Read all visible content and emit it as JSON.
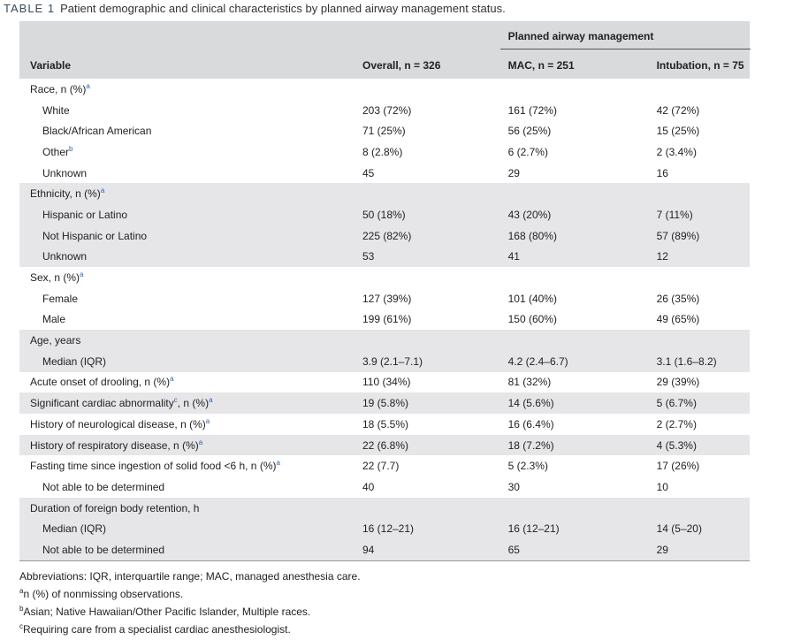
{
  "caption": {
    "label": "TABLE 1",
    "text": "Patient demographic and clinical characteristics by planned airway management status."
  },
  "header": {
    "group": "Planned airway management",
    "variable": "Variable",
    "overall": "Overall, n = 326",
    "mac": "MAC, n = 251",
    "intubation": "Intubation, n = 75"
  },
  "rows": {
    "race": {
      "label": "Race, n (%)",
      "sup": "a"
    },
    "white": {
      "label": "White",
      "overall": "203 (72%)",
      "mac": "161 (72%)",
      "intubation": "42 (72%)"
    },
    "black": {
      "label": "Black/African American",
      "overall": "71 (25%)",
      "mac": "56 (25%)",
      "intubation": "15 (25%)"
    },
    "other": {
      "label": "Other",
      "sup": "b",
      "overall": "8 (2.8%)",
      "mac": "6 (2.7%)",
      "intubation": "2 (3.4%)"
    },
    "race_unknown": {
      "label": "Unknown",
      "overall": "45",
      "mac": "29",
      "intubation": "16"
    },
    "ethnicity": {
      "label": "Ethnicity, n (%)",
      "sup": "a"
    },
    "hispanic": {
      "label": "Hispanic or Latino",
      "overall": "50 (18%)",
      "mac": "43 (20%)",
      "intubation": "7 (11%)"
    },
    "not_hispanic": {
      "label": "Not Hispanic or Latino",
      "overall": "225 (82%)",
      "mac": "168 (80%)",
      "intubation": "57 (89%)"
    },
    "eth_unknown": {
      "label": "Unknown",
      "overall": "53",
      "mac": "41",
      "intubation": "12"
    },
    "sex": {
      "label": "Sex, n (%)",
      "sup": "a"
    },
    "female": {
      "label": "Female",
      "overall": "127 (39%)",
      "mac": "101 (40%)",
      "intubation": "26 (35%)"
    },
    "male": {
      "label": "Male",
      "overall": "199 (61%)",
      "mac": "150 (60%)",
      "intubation": "49 (65%)"
    },
    "age": {
      "label": "Age, years"
    },
    "age_median": {
      "label": "Median (IQR)",
      "overall": "3.9 (2.1–7.1)",
      "mac": "4.2 (2.4–6.7)",
      "intubation": "3.1 (1.6–8.2)"
    },
    "drooling": {
      "label": "Acute onset of drooling, n (%)",
      "sup": "a",
      "overall": "110 (34%)",
      "mac": "81 (32%)",
      "intubation": "29 (39%)"
    },
    "cardiac": {
      "label_pre": "Significant cardiac abnormality",
      "sup_c": "c",
      "label_post": ", n (%)",
      "sup": "a",
      "overall": "19 (5.8%)",
      "mac": "14 (5.6%)",
      "intubation": "5 (6.7%)"
    },
    "neuro": {
      "label": "History of neurological disease, n (%)",
      "sup": "a",
      "overall": "18 (5.5%)",
      "mac": "16 (6.4%)",
      "intubation": "2 (2.7%)"
    },
    "resp": {
      "label": "History of respiratory disease, n (%)",
      "sup": "a",
      "overall": "22 (6.8%)",
      "mac": "18 (7.2%)",
      "intubation": "4 (5.3%)"
    },
    "fasting": {
      "label": "Fasting time since ingestion of solid food <6 h, n (%)",
      "sup": "a",
      "overall": "22 (7.7)",
      "mac": "5 (2.3%)",
      "intubation": "17 (26%)"
    },
    "fasting_na": {
      "label": "Not able to be determined",
      "overall": "40",
      "mac": "30",
      "intubation": "10"
    },
    "duration": {
      "label": "Duration of foreign body retention, h"
    },
    "dur_median": {
      "label": "Median (IQR)",
      "overall": "16 (12–21)",
      "mac": "16 (12–21)",
      "intubation": "14 (5–20)"
    },
    "dur_na": {
      "label": "Not able to be determined",
      "overall": "94",
      "mac": "65",
      "intubation": "29"
    }
  },
  "footnotes": {
    "abbrev": "Abbreviations: IQR, interquartile range; MAC, managed anesthesia care.",
    "a_mark": "a",
    "a_text": "n (%) of nonmissing observations.",
    "b_mark": "b",
    "b_text": "Asian; Native Hawaiian/Other Pacific Islander, Multiple races.",
    "c_mark": "c",
    "c_text": "Requiring care from a specialist cardiac anesthesiologist."
  }
}
